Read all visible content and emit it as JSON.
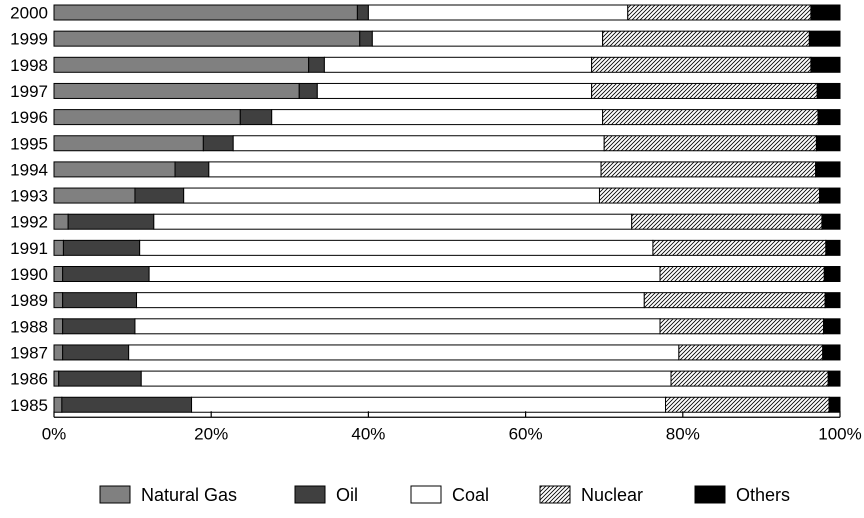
{
  "chart_data": {
    "type": "bar",
    "orientation": "horizontal",
    "stacked": true,
    "normalized": true,
    "title": "",
    "xlabel": "",
    "ylabel": "",
    "xlim": [
      0,
      100
    ],
    "x_ticks": [
      "0%",
      "20%",
      "40%",
      "60%",
      "80%",
      "100%"
    ],
    "x_tick_values": [
      0,
      20,
      40,
      60,
      80,
      100
    ],
    "grid": false,
    "legend_position": "bottom",
    "categories": [
      "2000",
      "1999",
      "1998",
      "1997",
      "1996",
      "1995",
      "1994",
      "1993",
      "1992",
      "1991",
      "1990",
      "1989",
      "1988",
      "1987",
      "1986",
      "1985"
    ],
    "series": [
      {
        "name": "Natural Gas",
        "color": "#808080",
        "pattern": "solid",
        "values": [
          38.6,
          38.9,
          32.4,
          31.2,
          23.7,
          19.0,
          15.4,
          10.3,
          1.8,
          1.2,
          1.1,
          1.1,
          1.1,
          1.1,
          0.6,
          1.0
        ]
      },
      {
        "name": "Oil",
        "color": "#404040",
        "pattern": "solid",
        "values": [
          1.4,
          1.6,
          2.0,
          2.3,
          4.0,
          3.8,
          4.3,
          6.2,
          10.9,
          9.7,
          11.0,
          9.4,
          9.2,
          8.4,
          10.5,
          16.5
        ]
      },
      {
        "name": "Coal",
        "color": "#ffffff",
        "pattern": "solid",
        "values": [
          33.0,
          29.3,
          34.0,
          34.9,
          42.1,
          47.2,
          49.9,
          52.9,
          60.8,
          65.3,
          65.0,
          64.6,
          66.8,
          70.0,
          67.4,
          60.3
        ]
      },
      {
        "name": "Nuclear",
        "color": "#ffffff",
        "pattern": "hatch",
        "values": [
          23.3,
          26.3,
          27.9,
          28.7,
          27.4,
          27.0,
          27.3,
          28.0,
          24.2,
          22.0,
          20.9,
          23.0,
          20.8,
          18.3,
          20.0,
          20.8
        ]
      },
      {
        "name": "Others",
        "color": "#000000",
        "pattern": "solid",
        "values": [
          3.7,
          3.9,
          3.7,
          2.9,
          2.8,
          3.0,
          3.1,
          2.6,
          2.3,
          1.8,
          2.0,
          1.9,
          2.1,
          2.2,
          1.5,
          1.4
        ]
      }
    ]
  }
}
